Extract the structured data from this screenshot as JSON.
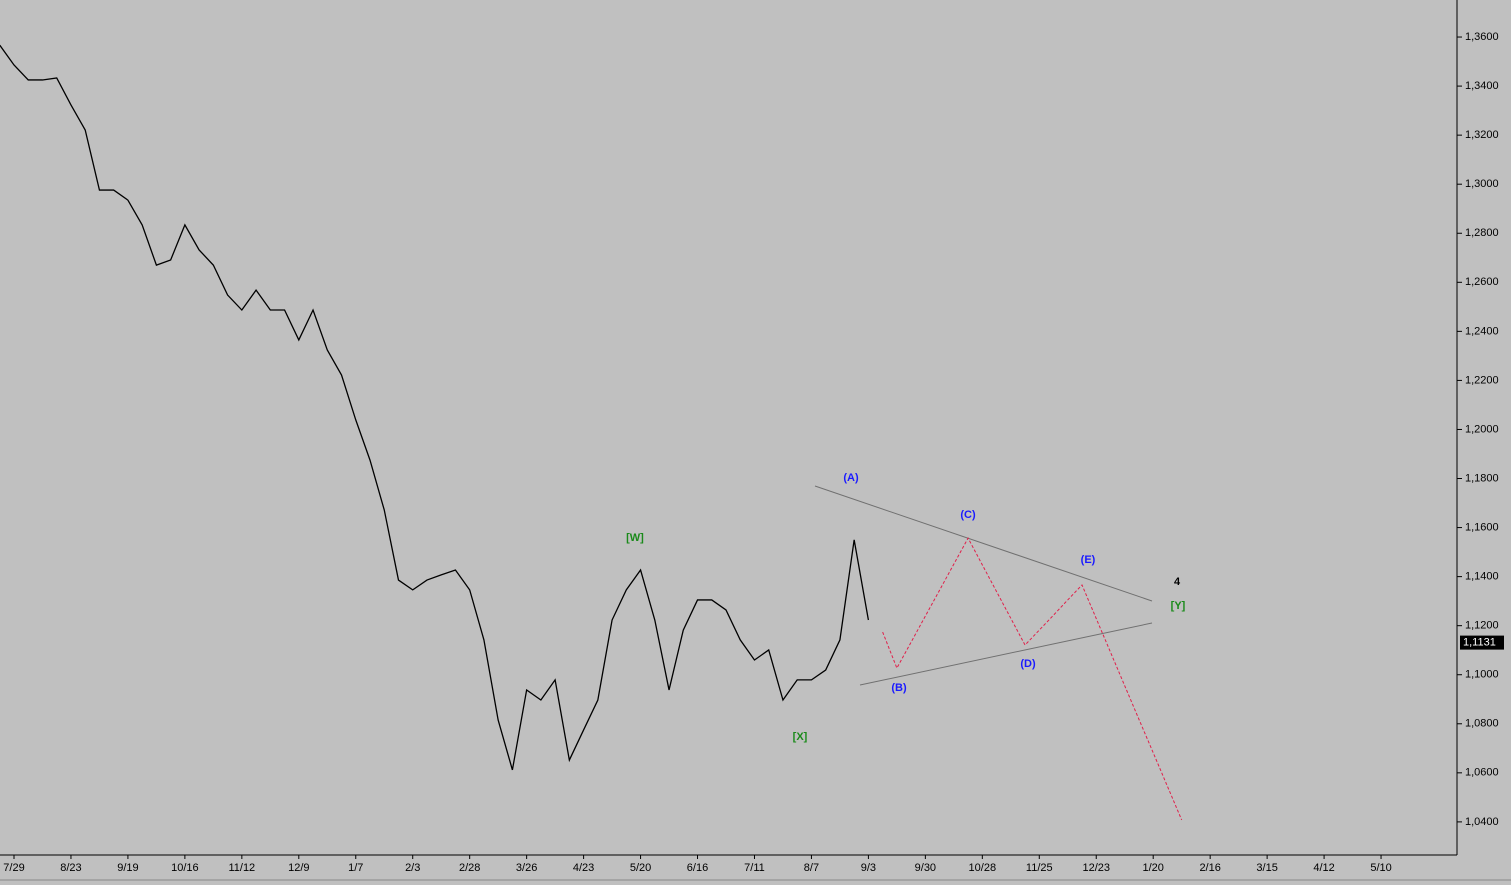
{
  "chart_data": {
    "type": "line",
    "categories": [
      null,
      "7/29",
      null,
      null,
      null,
      "8/23",
      null,
      null,
      null,
      "9/19",
      null,
      null,
      null,
      "10/16",
      null,
      null,
      null,
      "11/12",
      null,
      null,
      null,
      "12/9",
      null,
      null,
      null,
      "1/7",
      null,
      null,
      null,
      "2/3",
      null,
      null,
      null,
      "2/28",
      null,
      null,
      null,
      "3/26",
      null,
      null,
      null,
      "4/23",
      null,
      null,
      null,
      "5/20",
      null,
      null,
      null,
      "6/16",
      null,
      null,
      null,
      "7/11",
      null,
      null,
      null,
      "8/7",
      null,
      null,
      null,
      "9/3",
      null,
      null,
      null,
      "9/30",
      null,
      null,
      null,
      "10/28",
      null,
      null,
      null,
      "11/25",
      null,
      null,
      null,
      "12/23",
      null,
      null,
      null,
      "1/20",
      null,
      null,
      null,
      "2/16",
      null,
      null,
      null,
      "3/15",
      null,
      null,
      null,
      "4/12",
      null,
      null,
      null,
      "5/10",
      null,
      null,
      null
    ],
    "series": [
      {
        "color": "#000000",
        "values": [
          1.3567,
          1.3486,
          1.3425,
          1.3425,
          1.3433,
          1.3323,
          1.3221,
          1.2976,
          1.2976,
          1.2935,
          1.2834,
          1.267,
          1.2691,
          1.2834,
          1.2732,
          1.267,
          1.2548,
          1.2487,
          1.2568,
          1.2487,
          1.2487,
          1.2365,
          1.2487,
          1.2324,
          1.2222,
          1.2039,
          1.1875,
          1.1672,
          1.1386,
          1.1346,
          1.1386,
          1.1407,
          1.1427,
          1.1346,
          1.1142,
          1.0815,
          1.0612,
          1.0938,
          1.0897,
          1.0979,
          1.0652,
          1.0775,
          1.0897,
          1.1223,
          1.1346,
          1.1427,
          1.1223,
          1.0938,
          1.1182,
          1.1305,
          1.1305,
          1.1264,
          1.1142,
          1.106,
          1.1101,
          1.0897,
          1.0979,
          1.0979,
          1.1019,
          1.1142,
          1.155,
          1.1223,
          null,
          null,
          null,
          null,
          null,
          null,
          null,
          null,
          null,
          null,
          null,
          null,
          null,
          null,
          null,
          null,
          null,
          null,
          null,
          null,
          null,
          null,
          null,
          null,
          null,
          null,
          null,
          null,
          null,
          null,
          null,
          null,
          null,
          null,
          null,
          null,
          null,
          null,
          null
        ]
      },
      {
        "color": "#e0204a",
        "dashed": true,
        "values": [
          null,
          null,
          null,
          null,
          null,
          null,
          null,
          null,
          null,
          null,
          null,
          null,
          null,
          null,
          null,
          null,
          null,
          null,
          null,
          null,
          null,
          null,
          null,
          null,
          null,
          null,
          null,
          null,
          null,
          null,
          null,
          null,
          null,
          null,
          null,
          null,
          null,
          null,
          null,
          null,
          null,
          null,
          null,
          null,
          null,
          null,
          null,
          null,
          null,
          null,
          null,
          null,
          null,
          null,
          null,
          null,
          null,
          null,
          null,
          null,
          null,
          null,
          1.1174,
          1.1027,
          1.1133,
          1.1239,
          1.1345,
          1.1451,
          1.1557,
          1.1448,
          1.1339,
          1.123,
          1.1121,
          1.1182,
          1.1243,
          1.1305,
          1.1366,
          1.1229,
          1.1092,
          1.0955,
          1.0818,
          1.0682,
          1.0545,
          1.0408,
          null,
          null,
          null,
          null,
          null,
          null,
          null,
          null,
          null,
          null,
          null,
          null,
          null,
          null,
          null,
          null,
          null
        ]
      }
    ],
    "ylim": [
      1.0265,
      1.3751
    ],
    "yticks": [
      {
        "value": 1.04,
        "label": "1,0400"
      },
      {
        "value": 1.06,
        "label": "1,0600"
      },
      {
        "value": 1.08,
        "label": "1,0800"
      },
      {
        "value": 1.1,
        "label": "1,1000"
      },
      {
        "value": 1.12,
        "label": "1,1200"
      },
      {
        "value": 1.14,
        "label": "1,1400"
      },
      {
        "value": 1.16,
        "label": "1,1600"
      },
      {
        "value": 1.18,
        "label": "1,1800"
      },
      {
        "value": 1.2,
        "label": "1,2000"
      },
      {
        "value": 1.22,
        "label": "1,2200"
      },
      {
        "value": 1.24,
        "label": "1,2400"
      },
      {
        "value": 1.26,
        "label": "1,2600"
      },
      {
        "value": 1.28,
        "label": "1,2800"
      },
      {
        "value": 1.3,
        "label": "1,3000"
      },
      {
        "value": 1.32,
        "label": "1,3200"
      },
      {
        "value": 1.34,
        "label": "1,3400"
      },
      {
        "value": 1.36,
        "label": "1,3600"
      }
    ],
    "last_price": {
      "value": 1.1131,
      "label": "1,1131"
    },
    "annotations": [
      {
        "text": "(A)",
        "color": "#1a1aff"
      },
      {
        "text": "(B)",
        "color": "#1a1aff"
      },
      {
        "text": "(C)",
        "color": "#1a1aff"
      },
      {
        "text": "(D)",
        "color": "#1a1aff"
      },
      {
        "text": "(E)",
        "color": "#1a1aff"
      },
      {
        "text": "[W]",
        "color": "#1a8a1a"
      },
      {
        "text": "[X]",
        "color": "#1a8a1a"
      },
      {
        "text": "[Y]",
        "color": "#1a8a1a"
      },
      {
        "text": "4",
        "color": "#000000"
      }
    ]
  }
}
